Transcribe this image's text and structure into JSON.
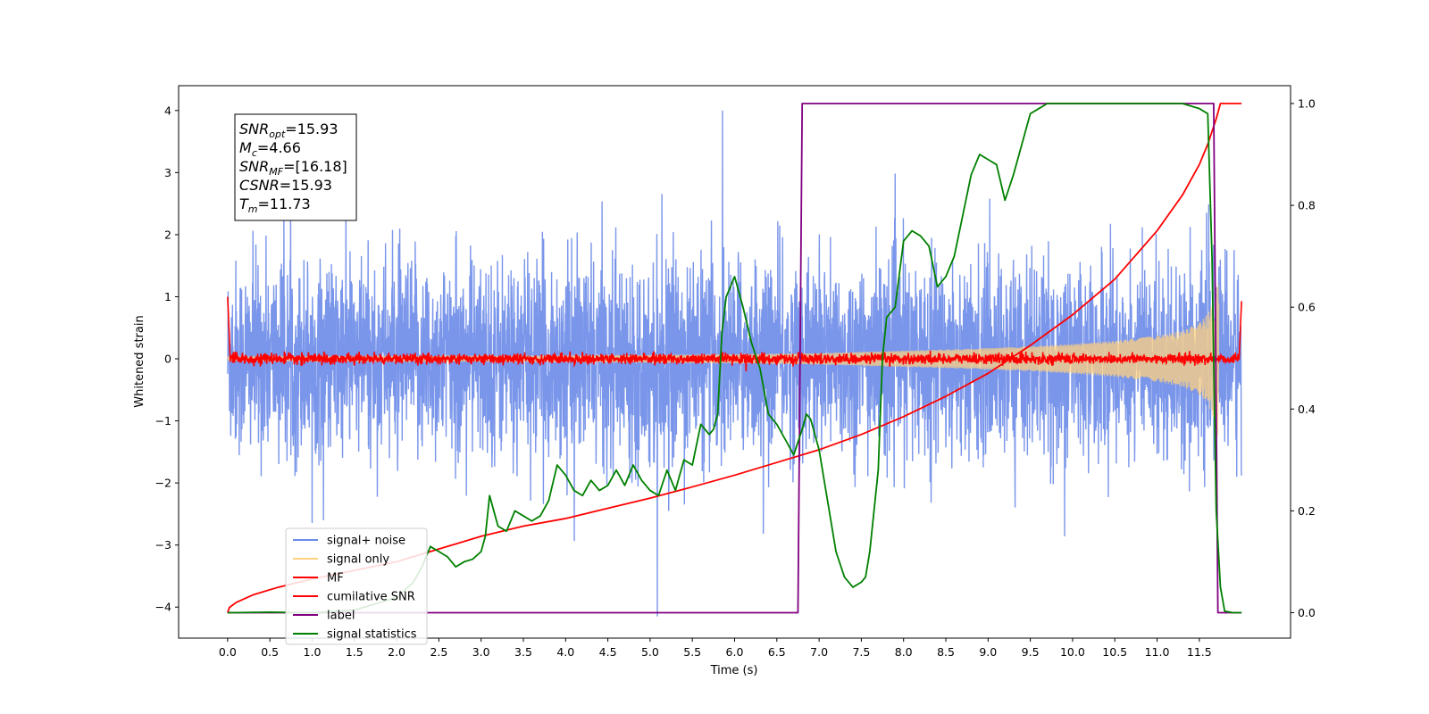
{
  "chart_data": {
    "type": "line",
    "xlabel": "Time (s)",
    "ylabel_left": "Whitened strain",
    "xlim": [
      -0.58,
      12.58
    ],
    "ylim_left": [
      -4.5,
      4.4
    ],
    "ylim_right": [
      -0.05,
      1.035
    ],
    "x_ticks": [
      0.0,
      0.5,
      1.0,
      1.5,
      2.0,
      2.5,
      3.0,
      3.5,
      4.0,
      4.5,
      5.0,
      5.5,
      6.0,
      6.5,
      7.0,
      7.5,
      8.0,
      8.5,
      9.0,
      9.5,
      10.0,
      10.5,
      11.0,
      11.5
    ],
    "x_tick_labels": [
      "0.0",
      "0.5",
      "1.0",
      "1.5",
      "2.0",
      "2.5",
      "3.0",
      "3.5",
      "4.0",
      "4.5",
      "5.0",
      "5.5",
      "6.0",
      "6.5",
      "7.0",
      "7.5",
      "8.0",
      "8.5",
      "9.0",
      "9.5",
      "10.0",
      "10.5",
      "11.0",
      "11.5"
    ],
    "y_ticks_left": [
      -4,
      -3,
      -2,
      -1,
      0,
      1,
      2,
      3,
      4
    ],
    "y_tick_labels_left": [
      "−4",
      "−3",
      "−2",
      "−1",
      "0",
      "1",
      "2",
      "3",
      "4"
    ],
    "y_ticks_right": [
      0.0,
      0.2,
      0.4,
      0.6,
      0.8,
      1.0
    ],
    "y_tick_labels_right": [
      "0.0",
      "0.2",
      "0.4",
      "0.6",
      "0.8",
      "1.0"
    ],
    "grid": false,
    "legend_placement": "lower-left",
    "legend": [
      {
        "name": "signal+ noise",
        "color": "#6b8be8"
      },
      {
        "name": "signal only",
        "color": "#ffd080"
      },
      {
        "name": "MF",
        "color": "#ff0000"
      },
      {
        "name": "cumilative SNR",
        "color": "#ff0000"
      },
      {
        "name": "label",
        "color": "#800080"
      },
      {
        "name": "signal statistics",
        "color": "#008000"
      }
    ],
    "annotation": [
      {
        "main": "SNR",
        "sub": "opt",
        "rest": "=15.93"
      },
      {
        "main": "M",
        "sub": "c",
        "rest": "=4.66"
      },
      {
        "main": "SNR",
        "sub": "MF",
        "rest": "=[16.18]"
      },
      {
        "main": "CSNR",
        "sub": "",
        "rest": "=15.93"
      },
      {
        "main": "T",
        "sub": "m",
        "rest": "=11.73"
      }
    ],
    "series": [
      {
        "name": "signal+ noise",
        "axis": "left",
        "color": "#6b8be8",
        "kind": "noise",
        "time_range": [
          0.0,
          12.0
        ],
        "typical_amplitude": 1.0,
        "max": 4.0,
        "min": -4.15
      },
      {
        "name": "signal only",
        "axis": "left",
        "color": "#ffd080",
        "kind": "chirp",
        "envelope": {
          "x": [
            0,
            1,
            2,
            3,
            4,
            5,
            6,
            7,
            7.5,
            8,
            8.5,
            9,
            9.5,
            10,
            10.5,
            11,
            11.3,
            11.5,
            11.6,
            11.7,
            11.73,
            11.75
          ],
          "y": [
            0.03,
            0.035,
            0.04,
            0.045,
            0.05,
            0.06,
            0.07,
            0.09,
            0.11,
            0.13,
            0.15,
            0.17,
            0.2,
            0.24,
            0.29,
            0.37,
            0.45,
            0.58,
            0.72,
            1.05,
            1.4,
            0.0
          ]
        }
      },
      {
        "name": "MF",
        "axis": "left",
        "color": "#ff0000",
        "kind": "noise",
        "time_range": [
          0.0,
          12.0
        ],
        "typical_amplitude": 0.06,
        "start_value": 1.0,
        "end_value": 0.93
      },
      {
        "name": "cumilative SNR",
        "axis": "right",
        "color": "#ff0000",
        "x": [
          0.0,
          0.02,
          0.1,
          0.3,
          0.6,
          1.0,
          1.5,
          2.0,
          2.5,
          3.0,
          3.5,
          4.0,
          4.5,
          5.0,
          5.5,
          6.0,
          6.5,
          7.0,
          7.5,
          8.0,
          8.5,
          9.0,
          9.5,
          10.0,
          10.5,
          11.0,
          11.3,
          11.5,
          11.6,
          11.7,
          11.75,
          12.0
        ],
        "y": [
          0.0,
          0.01,
          0.02,
          0.035,
          0.05,
          0.066,
          0.083,
          0.1,
          0.125,
          0.15,
          0.17,
          0.185,
          0.205,
          0.225,
          0.247,
          0.27,
          0.295,
          0.32,
          0.35,
          0.385,
          0.425,
          0.47,
          0.525,
          0.585,
          0.655,
          0.75,
          0.82,
          0.88,
          0.92,
          0.97,
          1.0,
          1.0
        ]
      },
      {
        "name": "label",
        "axis": "right",
        "color": "#800080",
        "x": [
          0.0,
          6.75,
          6.8,
          11.67,
          11.72,
          12.0
        ],
        "y": [
          0.0,
          0.0,
          1.0,
          1.0,
          0.0,
          0.0
        ]
      },
      {
        "name": "signal statistics",
        "axis": "right",
        "color": "#008000",
        "x": [
          0.0,
          0.5,
          1.0,
          1.5,
          1.8,
          2.0,
          2.2,
          2.3,
          2.4,
          2.5,
          2.6,
          2.7,
          2.8,
          2.9,
          3.0,
          3.05,
          3.1,
          3.2,
          3.3,
          3.4,
          3.5,
          3.6,
          3.7,
          3.8,
          3.9,
          4.0,
          4.1,
          4.2,
          4.3,
          4.4,
          4.5,
          4.6,
          4.7,
          4.8,
          4.9,
          5.0,
          5.1,
          5.2,
          5.3,
          5.4,
          5.5,
          5.6,
          5.7,
          5.75,
          5.8,
          5.85,
          5.9,
          6.0,
          6.1,
          6.2,
          6.3,
          6.4,
          6.5,
          6.6,
          6.7,
          6.8,
          6.85,
          6.9,
          7.0,
          7.1,
          7.2,
          7.3,
          7.4,
          7.5,
          7.55,
          7.6,
          7.7,
          7.75,
          7.8,
          7.9,
          8.0,
          8.1,
          8.2,
          8.3,
          8.4,
          8.5,
          8.6,
          8.7,
          8.8,
          8.9,
          9.0,
          9.1,
          9.2,
          9.3,
          9.4,
          9.5,
          9.6,
          9.7,
          9.8,
          10.0,
          10.5,
          11.0,
          11.3,
          11.5,
          11.6,
          11.65,
          11.7,
          11.75,
          11.8,
          11.9,
          12.0
        ],
        "y": [
          0.0,
          0.001,
          0.0,
          0.005,
          0.02,
          0.03,
          0.06,
          0.09,
          0.13,
          0.12,
          0.11,
          0.09,
          0.1,
          0.105,
          0.12,
          0.15,
          0.23,
          0.17,
          0.16,
          0.2,
          0.19,
          0.18,
          0.19,
          0.22,
          0.29,
          0.27,
          0.24,
          0.23,
          0.26,
          0.24,
          0.25,
          0.28,
          0.25,
          0.29,
          0.26,
          0.24,
          0.23,
          0.28,
          0.24,
          0.3,
          0.29,
          0.37,
          0.35,
          0.36,
          0.39,
          0.55,
          0.62,
          0.66,
          0.6,
          0.53,
          0.48,
          0.39,
          0.37,
          0.34,
          0.31,
          0.36,
          0.39,
          0.38,
          0.32,
          0.22,
          0.12,
          0.07,
          0.05,
          0.06,
          0.07,
          0.12,
          0.28,
          0.5,
          0.58,
          0.6,
          0.73,
          0.75,
          0.74,
          0.72,
          0.64,
          0.66,
          0.7,
          0.78,
          0.86,
          0.9,
          0.89,
          0.88,
          0.81,
          0.86,
          0.92,
          0.98,
          0.99,
          1.0,
          1.0,
          1.0,
          1.0,
          1.0,
          1.0,
          0.99,
          0.98,
          0.7,
          0.2,
          0.05,
          0.003,
          0.0,
          0.0
        ]
      }
    ]
  }
}
